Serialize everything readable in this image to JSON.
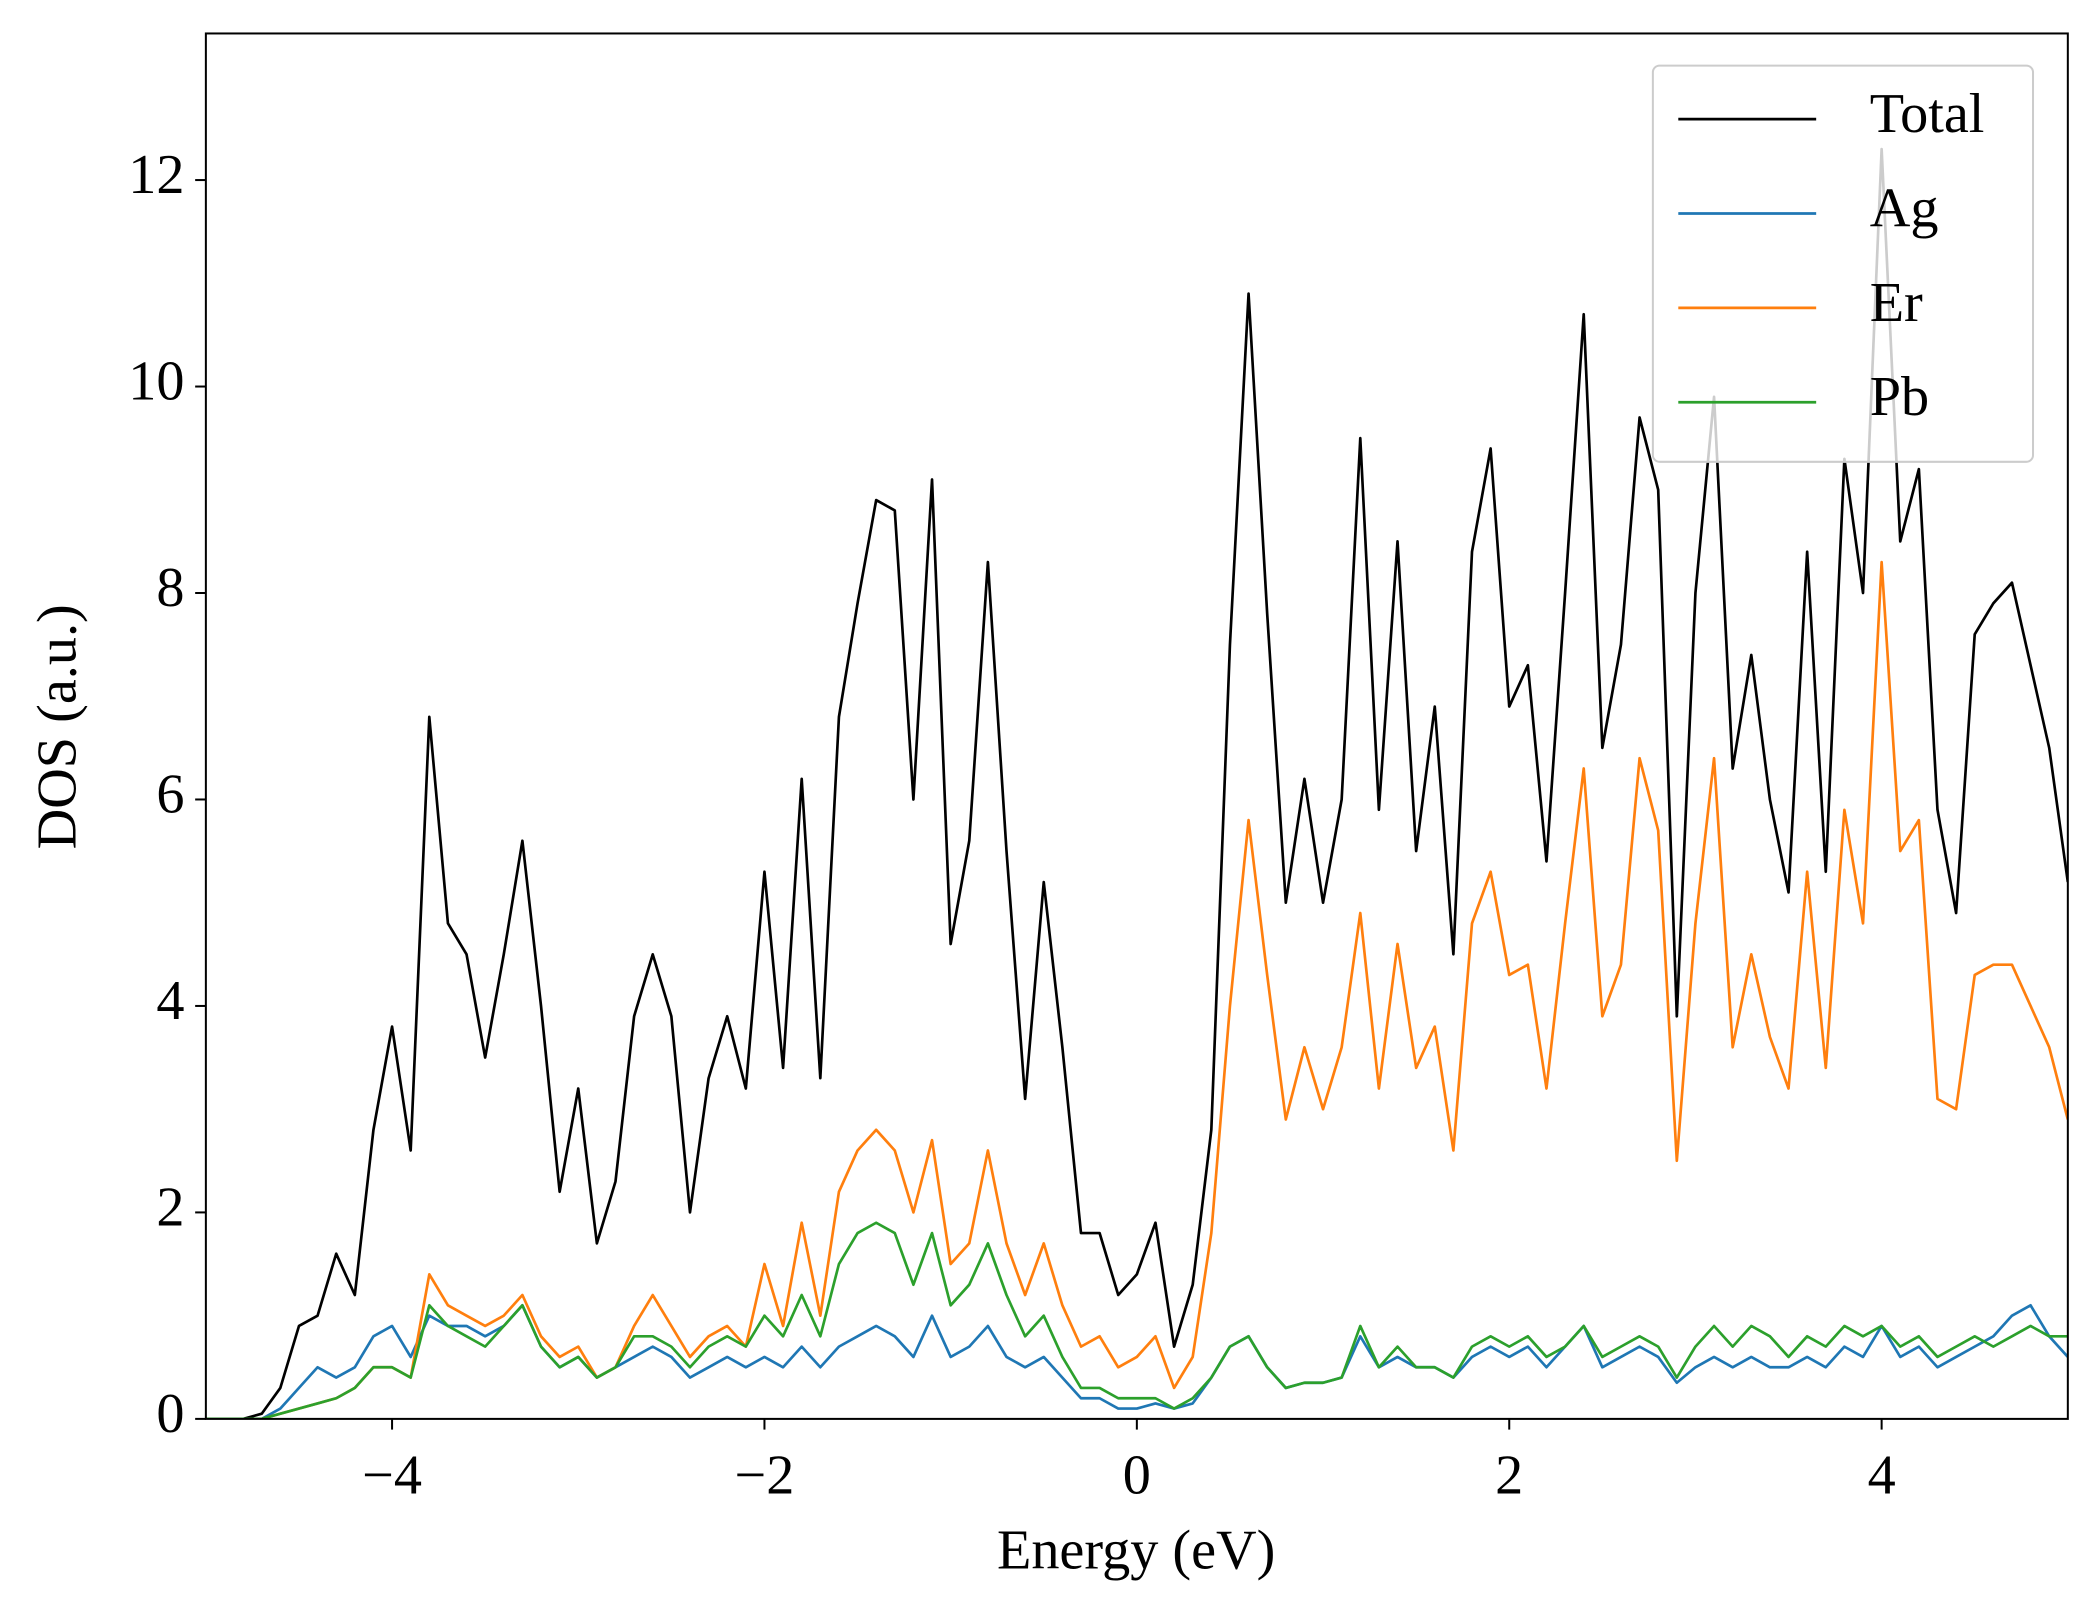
{
  "chart_data": {
    "type": "line",
    "xlabel": "Energy (eV)",
    "ylabel": "DOS (a.u.)",
    "x": [
      -5.0,
      -4.9,
      -4.8,
      -4.7,
      -4.6,
      -4.5,
      -4.4,
      -4.3,
      -4.2,
      -4.1,
      -4.0,
      -3.9,
      -3.8,
      -3.7,
      -3.6,
      -3.5,
      -3.4,
      -3.3,
      -3.2,
      -3.1,
      -3.0,
      -2.9,
      -2.8,
      -2.7,
      -2.6,
      -2.5,
      -2.4,
      -2.3,
      -2.2,
      -2.1,
      -2.0,
      -1.9,
      -1.8,
      -1.7,
      -1.6,
      -1.5,
      -1.4,
      -1.3,
      -1.2,
      -1.1,
      -1.0,
      -0.9,
      -0.8,
      -0.7,
      -0.6,
      -0.5,
      -0.4,
      -0.3,
      -0.2,
      -0.1,
      0.0,
      0.1,
      0.2,
      0.3,
      0.4,
      0.5,
      0.6,
      0.7,
      0.8,
      0.9,
      1.0,
      1.1,
      1.2,
      1.3,
      1.4,
      1.5,
      1.6,
      1.7,
      1.8,
      1.9,
      2.0,
      2.1,
      2.2,
      2.3,
      2.4,
      2.5,
      2.6,
      2.7,
      2.8,
      2.9,
      3.0,
      3.1,
      3.2,
      3.3,
      3.4,
      3.5,
      3.6,
      3.7,
      3.8,
      3.9,
      4.0,
      4.1,
      4.2,
      4.3,
      4.4,
      4.5,
      4.6,
      4.7,
      4.8,
      4.9,
      5.0
    ],
    "series": [
      {
        "name": "Total",
        "color": "#000000",
        "values": [
          0,
          0,
          0,
          0.05,
          0.3,
          0.9,
          1.0,
          1.6,
          1.2,
          2.8,
          3.8,
          2.6,
          6.8,
          4.8,
          4.5,
          3.5,
          4.5,
          5.6,
          4.0,
          2.2,
          3.2,
          1.7,
          2.3,
          3.9,
          4.5,
          3.9,
          2.0,
          3.3,
          3.9,
          3.2,
          5.3,
          3.4,
          6.2,
          3.3,
          6.8,
          7.9,
          8.9,
          8.8,
          6.0,
          9.1,
          4.6,
          5.6,
          8.3,
          5.5,
          3.1,
          5.2,
          3.6,
          1.8,
          1.8,
          1.2,
          1.4,
          1.9,
          0.7,
          1.3,
          2.8,
          7.5,
          10.9,
          7.8,
          5.0,
          6.2,
          5.0,
          6.0,
          9.5,
          5.9,
          8.5,
          5.5,
          6.9,
          4.5,
          8.4,
          9.4,
          6.9,
          7.3,
          5.4,
          8.0,
          10.7,
          6.5,
          7.5,
          9.7,
          9.0,
          3.9,
          8.0,
          9.9,
          6.3,
          7.4,
          6.0,
          5.1,
          8.4,
          5.3,
          9.3,
          8.0,
          12.3,
          8.5,
          9.2,
          5.9,
          4.9,
          7.6,
          7.9,
          8.1,
          7.3,
          6.5,
          5.2
        ]
      },
      {
        "name": "Ag",
        "color": "#1f77b4",
        "values": [
          0,
          0,
          0,
          0,
          0.1,
          0.3,
          0.5,
          0.4,
          0.5,
          0.8,
          0.9,
          0.6,
          1.0,
          0.9,
          0.9,
          0.8,
          0.9,
          1.1,
          0.7,
          0.5,
          0.6,
          0.4,
          0.5,
          0.6,
          0.7,
          0.6,
          0.4,
          0.5,
          0.6,
          0.5,
          0.6,
          0.5,
          0.7,
          0.5,
          0.7,
          0.8,
          0.9,
          0.8,
          0.6,
          1.0,
          0.6,
          0.7,
          0.9,
          0.6,
          0.5,
          0.6,
          0.4,
          0.2,
          0.2,
          0.1,
          0.1,
          0.15,
          0.1,
          0.15,
          0.4,
          0.7,
          0.8,
          0.5,
          0.3,
          0.35,
          0.35,
          0.4,
          0.8,
          0.5,
          0.6,
          0.5,
          0.5,
          0.4,
          0.6,
          0.7,
          0.6,
          0.7,
          0.5,
          0.7,
          0.9,
          0.5,
          0.6,
          0.7,
          0.6,
          0.35,
          0.5,
          0.6,
          0.5,
          0.6,
          0.5,
          0.5,
          0.6,
          0.5,
          0.7,
          0.6,
          0.9,
          0.6,
          0.7,
          0.5,
          0.6,
          0.7,
          0.8,
          1.0,
          1.1,
          0.8,
          0.6
        ]
      },
      {
        "name": "Er",
        "color": "#ff7f0e",
        "values": [
          0,
          0,
          0,
          0,
          0.05,
          0.1,
          0.15,
          0.2,
          0.3,
          0.5,
          0.5,
          0.4,
          1.4,
          1.1,
          1.0,
          0.9,
          1.0,
          1.2,
          0.8,
          0.6,
          0.7,
          0.4,
          0.5,
          0.9,
          1.2,
          0.9,
          0.6,
          0.8,
          0.9,
          0.7,
          1.5,
          0.9,
          1.9,
          1.0,
          2.2,
          2.6,
          2.8,
          2.6,
          2.0,
          2.7,
          1.5,
          1.7,
          2.6,
          1.7,
          1.2,
          1.7,
          1.1,
          0.7,
          0.8,
          0.5,
          0.6,
          0.8,
          0.3,
          0.6,
          1.8,
          4.0,
          5.8,
          4.3,
          2.9,
          3.6,
          3.0,
          3.6,
          4.9,
          3.2,
          4.6,
          3.4,
          3.8,
          2.6,
          4.8,
          5.3,
          4.3,
          4.4,
          3.2,
          4.8,
          6.3,
          3.9,
          4.4,
          6.4,
          5.7,
          2.5,
          4.8,
          6.4,
          3.6,
          4.5,
          3.7,
          3.2,
          5.3,
          3.4,
          5.9,
          4.8,
          8.3,
          5.5,
          5.8,
          3.1,
          3.0,
          4.3,
          4.4,
          4.4,
          4.0,
          3.6,
          2.9
        ]
      },
      {
        "name": "Pb",
        "color": "#2ca02c",
        "values": [
          0,
          0,
          0,
          0,
          0.05,
          0.1,
          0.15,
          0.2,
          0.3,
          0.5,
          0.5,
          0.4,
          1.1,
          0.9,
          0.8,
          0.7,
          0.9,
          1.1,
          0.7,
          0.5,
          0.6,
          0.4,
          0.5,
          0.8,
          0.8,
          0.7,
          0.5,
          0.7,
          0.8,
          0.7,
          1.0,
          0.8,
          1.2,
          0.8,
          1.5,
          1.8,
          1.9,
          1.8,
          1.3,
          1.8,
          1.1,
          1.3,
          1.7,
          1.2,
          0.8,
          1.0,
          0.6,
          0.3,
          0.3,
          0.2,
          0.2,
          0.2,
          0.1,
          0.2,
          0.4,
          0.7,
          0.8,
          0.5,
          0.3,
          0.35,
          0.35,
          0.4,
          0.9,
          0.5,
          0.7,
          0.5,
          0.5,
          0.4,
          0.7,
          0.8,
          0.7,
          0.8,
          0.6,
          0.7,
          0.9,
          0.6,
          0.7,
          0.8,
          0.7,
          0.4,
          0.7,
          0.9,
          0.7,
          0.9,
          0.8,
          0.6,
          0.8,
          0.7,
          0.9,
          0.8,
          0.9,
          0.7,
          0.8,
          0.6,
          0.7,
          0.8,
          0.7,
          0.8,
          0.9,
          0.8,
          0.8
        ]
      }
    ],
    "xlim": [
      -5,
      5
    ],
    "xticks": [
      {
        "value": -4,
        "label": "−4"
      },
      {
        "value": -2,
        "label": "−2"
      },
      0,
      2,
      4
    ],
    "ylim": [
      0,
      13.42
    ],
    "yticks": [
      0,
      2,
      4,
      6,
      8,
      10,
      12
    ],
    "legend": "upper right",
    "grid": false
  }
}
